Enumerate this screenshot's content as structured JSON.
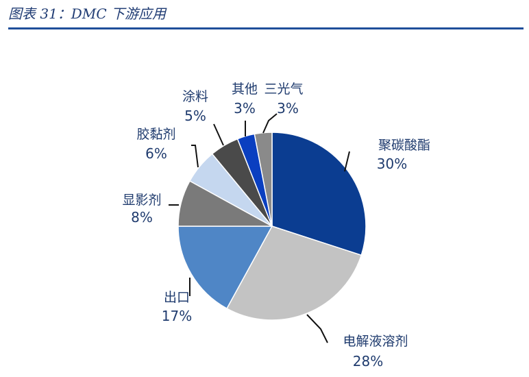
{
  "figure_title": "图表 31：DMC 下游应用",
  "colors": {
    "title": "#1f3b73",
    "rule": "#1f4e9a",
    "label": "#1f3b6e"
  },
  "chart_data": {
    "type": "pie",
    "title": "",
    "slices": [
      {
        "name": "聚碳酸酯",
        "value": 30,
        "label": "30%",
        "color": "#0b3d91"
      },
      {
        "name": "电解液溶剂",
        "value": 28,
        "label": "28%",
        "color": "#c3c3c3"
      },
      {
        "name": "出口",
        "value": 17,
        "label": "17%",
        "color": "#4f86c6"
      },
      {
        "name": "显影剂",
        "value": 8,
        "label": "8%",
        "color": "#7a7a7a"
      },
      {
        "name": "胶黏剂",
        "value": 6,
        "label": "6%",
        "color": "#c5d7ef"
      },
      {
        "name": "涂料",
        "value": 5,
        "label": "5%",
        "color": "#4a4a4a"
      },
      {
        "name": "其他",
        "value": 3,
        "label": "3%",
        "color": "#0a3fc0"
      },
      {
        "name": "三光气",
        "value": 3,
        "label": "3%",
        "color": "#8a8a8a"
      }
    ]
  }
}
